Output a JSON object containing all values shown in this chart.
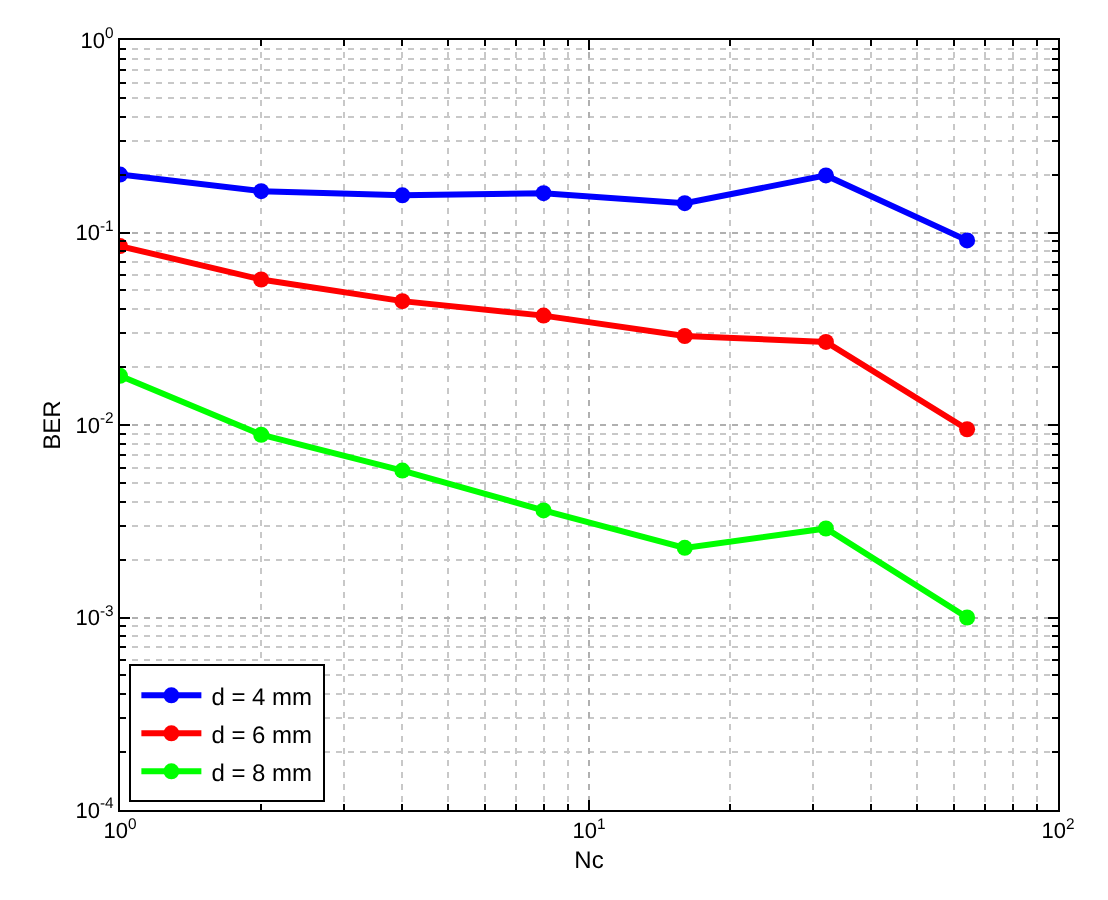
{
  "chart_data": {
    "type": "line",
    "xlabel": "Nc",
    "ylabel": "BER",
    "x": [
      1,
      2,
      4,
      8,
      16,
      32,
      64
    ],
    "series": [
      {
        "name": "d = 4 mm",
        "color": "#0000ff",
        "values": [
          0.2,
          0.164,
          0.156,
          0.16,
          0.142,
          0.198,
          0.091
        ]
      },
      {
        "name": "d = 6 mm",
        "color": "#ff0000",
        "values": [
          0.085,
          0.057,
          0.044,
          0.037,
          0.029,
          0.027,
          0.0095
        ]
      },
      {
        "name": "d = 8 mm",
        "color": "#00ff00",
        "values": [
          0.018,
          0.0089,
          0.0058,
          0.0036,
          0.0023,
          0.0029,
          0.001
        ]
      }
    ],
    "log": "xy",
    "xlim": [
      1,
      100
    ],
    "ylim": [
      0.0001,
      1
    ],
    "xticks": [
      {
        "value": 1,
        "label": "10$^{0}$"
      },
      {
        "value": 10,
        "label": "10$^{1}$"
      },
      {
        "value": 100,
        "label": "10$^{2}$"
      }
    ],
    "yticks": [
      {
        "value": 0.0001,
        "label": "10$^{-4}$"
      },
      {
        "value": 0.001,
        "label": "10$^{-3}$"
      },
      {
        "value": 0.01,
        "label": "10$^{-2}$"
      },
      {
        "value": 0.1,
        "label": "10$^{-1}$"
      },
      {
        "value": 1,
        "label": "10$^{0}$"
      }
    ],
    "grid": true,
    "legend": "bottom left",
    "marker": "circle",
    "line_style": "solid"
  }
}
